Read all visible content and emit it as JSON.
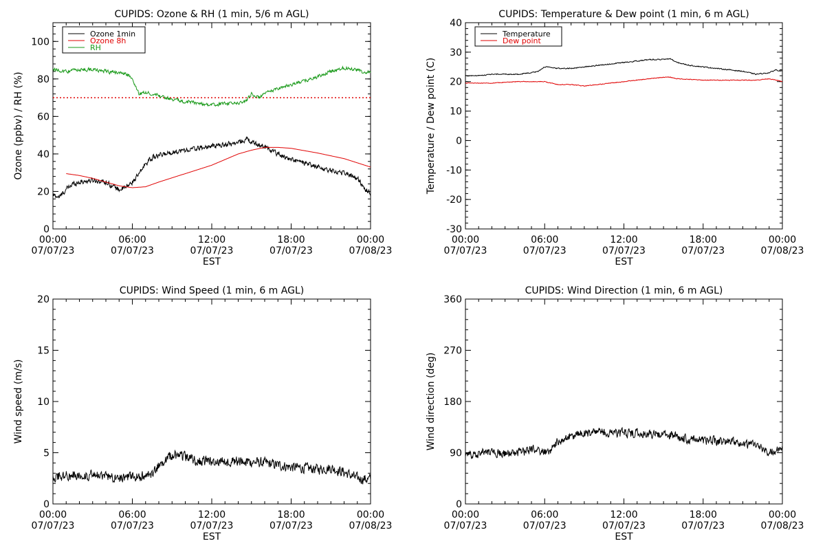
{
  "x_tick_labels": [
    {
      "time": "00:00",
      "date": "07/07/23"
    },
    {
      "time": "06:00",
      "date": "07/07/23"
    },
    {
      "time": "12:00",
      "date": "07/07/23"
    },
    {
      "time": "18:00",
      "date": "07/07/23"
    },
    {
      "time": "00:00",
      "date": "07/08/23"
    }
  ],
  "colors": {
    "black": "#000000",
    "red": "#e00000",
    "green": "#1a9a1a"
  },
  "chart_data": [
    {
      "type": "line",
      "title": "CUPIDS: Ozone & RH (1 min, 5/6 m AGL)",
      "xlabel": "EST",
      "ylabel": "Ozone (ppbv) / RH (%)",
      "xlim": [
        0,
        24
      ],
      "ylim": [
        0,
        110
      ],
      "yticks": [
        0,
        20,
        40,
        60,
        80,
        100
      ],
      "legend": "top-left",
      "reference_line": {
        "y": 70,
        "style": "dotted",
        "color": "#e00000"
      },
      "series": [
        {
          "name": "Ozone 1min",
          "color": "#000000",
          "noise": 1.2,
          "x": [
            0,
            0.5,
            1,
            1.5,
            2,
            3,
            4,
            5,
            5.5,
            6,
            6.5,
            7,
            7.5,
            8,
            9,
            10,
            11,
            12,
            13,
            14,
            14.7,
            15,
            15.5,
            16,
            16.5,
            17,
            18,
            19,
            20,
            21,
            22,
            23,
            23.5,
            24
          ],
          "y": [
            18,
            17,
            21,
            24,
            25,
            26,
            25,
            21,
            22,
            25,
            29,
            35,
            38,
            39,
            41,
            42,
            43,
            44,
            45,
            46,
            48,
            46,
            45,
            44,
            42,
            40,
            37,
            35,
            33,
            31,
            30,
            27,
            22,
            19
          ]
        },
        {
          "name": "Ozone 8h",
          "color": "#e00000",
          "noise": 0,
          "x": [
            1,
            2,
            3,
            4,
            5,
            6,
            7,
            8,
            10,
            12,
            14,
            15,
            16,
            17,
            18,
            20,
            22,
            24
          ],
          "y": [
            29.5,
            28.5,
            27,
            25,
            23,
            22,
            22.5,
            25,
            29.5,
            34,
            40,
            42,
            43.5,
            43.5,
            43,
            40.5,
            37.5,
            33
          ]
        },
        {
          "name": "RH",
          "color": "#1a9a1a",
          "noise": 0.8,
          "x": [
            0,
            1,
            2,
            3,
            4,
            5,
            5.5,
            6,
            6.5,
            7,
            8,
            9,
            10,
            11,
            12,
            13,
            14,
            14.5,
            15,
            15.5,
            16,
            17,
            18,
            19,
            20,
            21,
            22,
            23,
            23.5,
            24
          ],
          "y": [
            85,
            84,
            85,
            85,
            84,
            83,
            83,
            80,
            72,
            73,
            71,
            69,
            68,
            67,
            66,
            67,
            67,
            68,
            72,
            70,
            72,
            75,
            77,
            79,
            81,
            84,
            86,
            85,
            83,
            84
          ]
        }
      ]
    },
    {
      "type": "line",
      "title": "CUPIDS: Temperature & Dew point (1 min, 6 m AGL)",
      "xlabel": "EST",
      "ylabel": "Temperature / Dew point (C)",
      "xlim": [
        0,
        24
      ],
      "ylim": [
        -30,
        40
      ],
      "yticks": [
        -30,
        -20,
        -10,
        0,
        10,
        20,
        30,
        40
      ],
      "legend": "top-left",
      "series": [
        {
          "name": "Temperature",
          "color": "#000000",
          "noise": 0.15,
          "x": [
            0,
            1,
            2,
            3,
            4,
            5,
            5.5,
            6,
            7,
            8,
            9,
            10,
            11,
            12,
            13,
            14,
            15,
            15.5,
            16,
            17,
            18,
            19,
            20,
            21,
            22,
            23,
            23.5,
            24
          ],
          "y": [
            22,
            22,
            22.5,
            22.5,
            22.5,
            23,
            23.5,
            25,
            24.5,
            24.5,
            25,
            25.5,
            26,
            26.5,
            27,
            27.5,
            27.5,
            27.8,
            26.5,
            25.5,
            25,
            24.5,
            24,
            23.5,
            22.5,
            23,
            24,
            23.5
          ]
        },
        {
          "name": "Dew point",
          "color": "#e00000",
          "noise": 0.1,
          "x": [
            0,
            2,
            4,
            6,
            7,
            8,
            9,
            10,
            12,
            14,
            15,
            15.5,
            16,
            18,
            20,
            22,
            23,
            24
          ],
          "y": [
            19.5,
            19.5,
            20,
            20,
            19,
            19,
            18.5,
            19,
            20,
            21,
            21.5,
            21.5,
            21,
            20.5,
            20.5,
            20.5,
            21,
            20
          ]
        }
      ]
    },
    {
      "type": "line",
      "title": "CUPIDS: Wind Speed (1 min, 6 m AGL)",
      "xlabel": "EST",
      "ylabel": "Wind speed (m/s)",
      "xlim": [
        0,
        24
      ],
      "ylim": [
        0,
        20
      ],
      "yticks": [
        0,
        5,
        10,
        15,
        20
      ],
      "series": [
        {
          "name": "",
          "color": "#000000",
          "noise": 0.45,
          "x": [
            0,
            2,
            4,
            6,
            7,
            7.5,
            8,
            9,
            10,
            11,
            12,
            14,
            16,
            18,
            20,
            21,
            22,
            23,
            24
          ],
          "y": [
            2.7,
            2.8,
            2.7,
            2.6,
            2.7,
            2.8,
            3.8,
            4.8,
            4.6,
            4.2,
            4.1,
            4.2,
            4.0,
            3.6,
            3.4,
            3.5,
            3.1,
            2.5,
            2.4
          ]
        }
      ]
    },
    {
      "type": "line",
      "title": "CUPIDS: Wind Direction (1 min, 6 m AGL)",
      "xlabel": "EST",
      "ylabel": "Wind direction (deg)",
      "xlim": [
        0,
        24
      ],
      "ylim": [
        0,
        360
      ],
      "yticks": [
        0,
        90,
        180,
        270,
        360
      ],
      "series": [
        {
          "name": "",
          "color": "#000000",
          "noise": 7,
          "x": [
            0,
            1,
            2,
            3,
            4,
            5,
            6,
            6.5,
            7,
            8,
            9,
            10,
            12,
            14,
            16,
            18,
            19,
            20,
            21,
            22,
            23,
            24
          ],
          "y": [
            85,
            90,
            92,
            88,
            90,
            95,
            92,
            95,
            110,
            118,
            124,
            126,
            124,
            124,
            118,
            112,
            110,
            108,
            105,
            104,
            92,
            95
          ]
        }
      ]
    }
  ]
}
